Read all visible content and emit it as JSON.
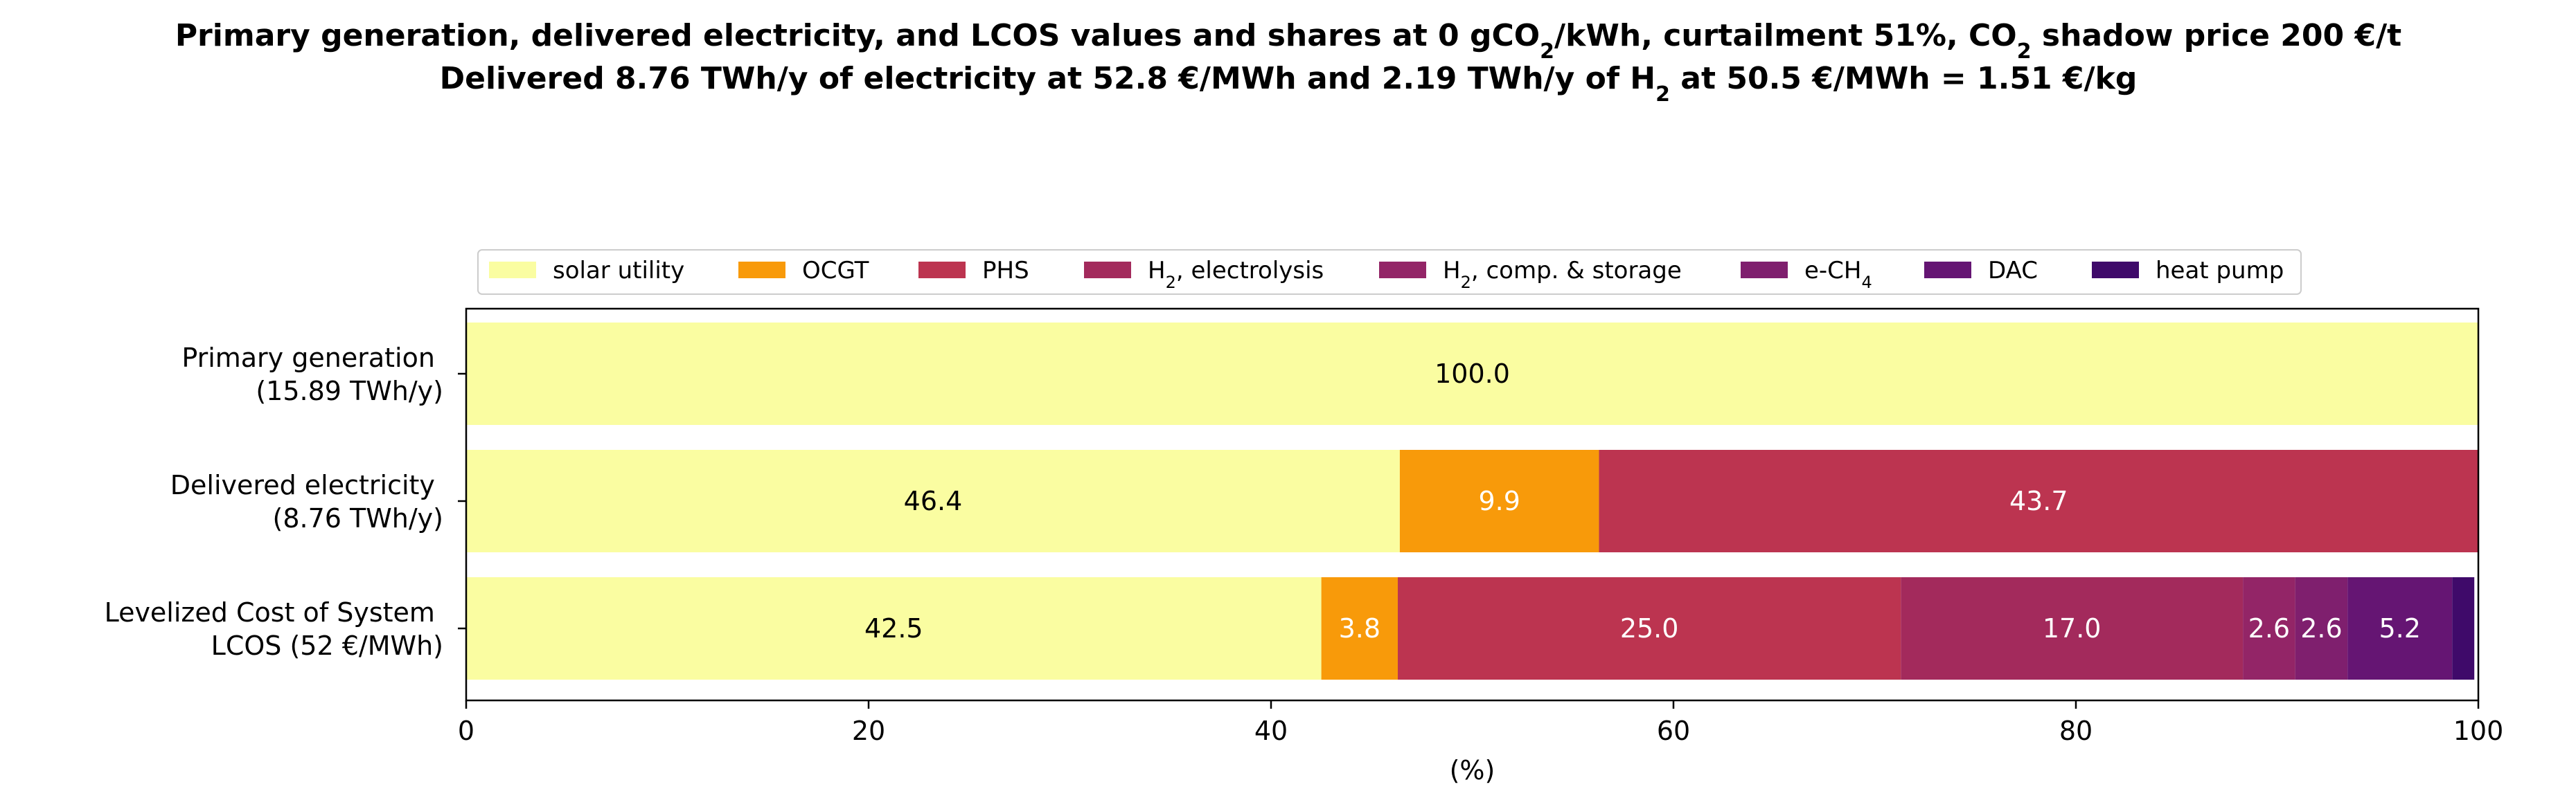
{
  "chart_data": {
    "type": "bar",
    "orientation": "horizontal",
    "stacked": true,
    "title_lines": [
      [
        {
          "t": "Primary generation, delivered electricity, and LCOS values and shares at 0 gCO"
        },
        {
          "t": "2",
          "sub": true
        },
        {
          "t": "/kWh, curtailment 51%, CO"
        },
        {
          "t": "2",
          "sub": true
        },
        {
          "t": " shadow price 200 €/t"
        }
      ],
      [
        {
          "t": "Delivered 8.76 TWh/y of electricity at 52.8 €/MWh and 2.19 TWh/y of H"
        },
        {
          "t": "2",
          "sub": true
        },
        {
          "t": " at 50.5 €/MWh = 1.51 €/kg"
        }
      ]
    ],
    "xlabel": "(%)",
    "xlim": [
      0,
      100
    ],
    "xticks": [
      0,
      20,
      40,
      60,
      80,
      100
    ],
    "legend_position": "top-center",
    "categories": [
      [
        "Primary generation ",
        "(15.89 TWh/y)"
      ],
      [
        "Delivered electricity ",
        "(8.76 TWh/y)"
      ],
      [
        "Levelized Cost of System ",
        "LCOS  (52 €/MWh)"
      ]
    ],
    "series": [
      {
        "name": [
          {
            "t": "solar utility"
          }
        ],
        "color": "#fafda1",
        "text_color": "#000000",
        "values": [
          100.0,
          46.4,
          42.5
        ],
        "labels": [
          "100.0",
          "46.4",
          "42.5"
        ]
      },
      {
        "name": [
          {
            "t": "OCGT"
          }
        ],
        "color": "#f89a0a",
        "text_color": "#ffffff",
        "values": [
          0,
          9.9,
          3.8
        ],
        "labels": [
          "",
          "9.9",
          "3.8"
        ]
      },
      {
        "name": [
          {
            "t": "PHS"
          }
        ],
        "color": "#bc3450",
        "text_color": "#ffffff",
        "values": [
          0,
          43.7,
          25.0
        ],
        "labels": [
          "",
          "43.7",
          "25.0"
        ]
      },
      {
        "name": [
          {
            "t": "H"
          },
          {
            "t": "2",
            "sub": true
          },
          {
            "t": ", electrolysis"
          }
        ],
        "color": "#a32a5c",
        "text_color": "#ffffff",
        "values": [
          0,
          0,
          17.0
        ],
        "labels": [
          "",
          "",
          "17.0"
        ]
      },
      {
        "name": [
          {
            "t": "H"
          },
          {
            "t": "2",
            "sub": true
          },
          {
            "t": ", comp. & storage"
          }
        ],
        "color": "#932567",
        "text_color": "#ffffff",
        "values": [
          0,
          0,
          2.6
        ],
        "labels": [
          "",
          "",
          "2.6"
        ]
      },
      {
        "name": [
          {
            "t": "e-CH"
          },
          {
            "t": "4",
            "sub": true
          }
        ],
        "color": "#7f1f6e",
        "text_color": "#ffffff",
        "values": [
          0,
          0,
          2.6
        ],
        "labels": [
          "",
          "",
          "2.6"
        ]
      },
      {
        "name": [
          {
            "t": "DAC"
          }
        ],
        "color": "#651573",
        "text_color": "#ffffff",
        "values": [
          0,
          0,
          5.2
        ],
        "labels": [
          "",
          "",
          "5.2"
        ]
      },
      {
        "name": [
          {
            "t": "heat pump"
          }
        ],
        "color": "#3f0a6a",
        "text_color": "#ffffff",
        "values": [
          0,
          0,
          1.1
        ],
        "labels": [
          "",
          "",
          ""
        ]
      }
    ]
  }
}
